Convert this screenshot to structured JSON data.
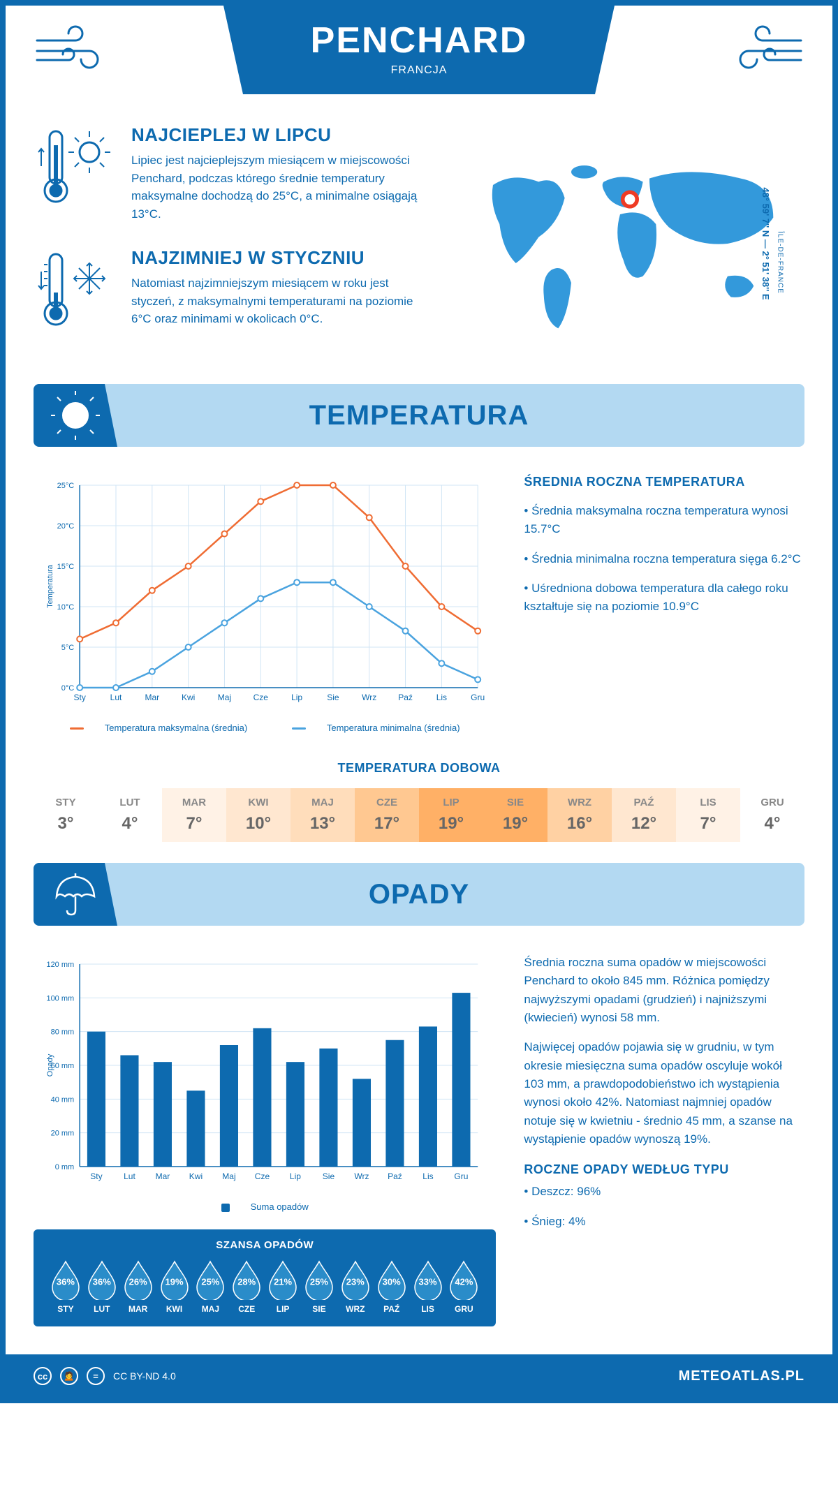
{
  "header": {
    "title": "PENCHARD",
    "subtitle": "FRANCJA"
  },
  "coords": "48° 59' 7'' N — 2° 51' 38'' E",
  "region": "ÎLE-DE-FRANCE",
  "warmest": {
    "title": "NAJCIEPLEJ W LIPCU",
    "text": "Lipiec jest najcieplejszym miesiącem w miejscowości Penchard, podczas którego średnie temperatury maksymalne dochodzą do 25°C, a minimalne osiągają 13°C."
  },
  "coldest": {
    "title": "NAJZIMNIEJ W STYCZNIU",
    "text": "Natomiast najzimniejszym miesiącem w roku jest styczeń, z maksymalnymi temperaturami na poziomie 6°C oraz minimami w okolicach 0°C."
  },
  "temp": {
    "section_title": "TEMPERATURA",
    "side_title": "ŚREDNIA ROCZNA TEMPERATURA",
    "side_bullets": [
      "• Średnia maksymalna roczna temperatura wynosi 15.7°C",
      "• Średnia minimalna roczna temperatura sięga 6.2°C",
      "• Uśredniona dobowa temperatura dla całego roku kształtuje się na poziomie 10.9°C"
    ],
    "chart": {
      "months": [
        "Sty",
        "Lut",
        "Mar",
        "Kwi",
        "Maj",
        "Cze",
        "Lip",
        "Sie",
        "Wrz",
        "Paź",
        "Lis",
        "Gru"
      ],
      "max": [
        6,
        8,
        12,
        15,
        19,
        23,
        25,
        25,
        21,
        15,
        10,
        7
      ],
      "min": [
        0,
        0,
        2,
        5,
        8,
        11,
        13,
        13,
        10,
        7,
        3,
        1
      ],
      "max_color": "#ef6c33",
      "min_color": "#4aa3df",
      "ylim": [
        0,
        25
      ],
      "ytick_step": 5,
      "ylabel": "Temperatura",
      "grid_color": "#d0e5f5",
      "legend_max": "Temperatura maksymalna (średnia)",
      "legend_min": "Temperatura minimalna (średnia)"
    },
    "dobowa": {
      "title": "TEMPERATURA DOBOWA",
      "months": [
        "STY",
        "LUT",
        "MAR",
        "KWI",
        "MAJ",
        "CZE",
        "LIP",
        "SIE",
        "WRZ",
        "PAŹ",
        "LIS",
        "GRU"
      ],
      "values": [
        "3°",
        "4°",
        "7°",
        "10°",
        "13°",
        "17°",
        "19°",
        "19°",
        "16°",
        "12°",
        "7°",
        "4°"
      ],
      "colors": [
        "#ffffff",
        "#ffffff",
        "#fff2e6",
        "#ffe7d0",
        "#ffddbb",
        "#ffc891",
        "#ffb066",
        "#ffb066",
        "#ffd1a3",
        "#ffe7d0",
        "#fff2e6",
        "#ffffff"
      ]
    }
  },
  "precip": {
    "section_title": "OPADY",
    "text1": "Średnia roczna suma opadów w miejscowości Penchard to około 845 mm. Różnica pomiędzy najwyższymi opadami (grudzień) i najniższymi (kwiecień) wynosi 58 mm.",
    "text2": "Najwięcej opadów pojawia się w grudniu, w tym okresie miesięczna suma opadów oscyluje wokół 103 mm, a prawdopodobieństwo ich wystąpienia wynosi około 42%. Natomiast najmniej opadów notuje się w kwietniu - średnio 45 mm, a szanse na wystąpienie opadów wynoszą 19%.",
    "chart": {
      "months": [
        "Sty",
        "Lut",
        "Mar",
        "Kwi",
        "Maj",
        "Cze",
        "Lip",
        "Sie",
        "Wrz",
        "Paź",
        "Lis",
        "Gru"
      ],
      "values": [
        80,
        66,
        62,
        45,
        72,
        82,
        62,
        70,
        52,
        75,
        83,
        103
      ],
      "ylim": [
        0,
        120
      ],
      "ytick_step": 20,
      "ylabel": "Opady",
      "bar_color": "#0d6aaf",
      "grid_color": "#d0e5f5",
      "legend": "Suma opadów"
    },
    "chance": {
      "title": "SZANSA OPADÓW",
      "months": [
        "STY",
        "LUT",
        "MAR",
        "KWI",
        "MAJ",
        "CZE",
        "LIP",
        "SIE",
        "WRZ",
        "PAŹ",
        "LIS",
        "GRU"
      ],
      "values": [
        "36%",
        "36%",
        "26%",
        "19%",
        "25%",
        "28%",
        "21%",
        "25%",
        "23%",
        "30%",
        "33%",
        "42%"
      ],
      "drop_fill": "#2a8cc9",
      "drop_stroke": "#ffffff"
    },
    "type": {
      "title": "ROCZNE OPADY WEDŁUG TYPU",
      "rain": "• Deszcz: 96%",
      "snow": "• Śnieg: 4%"
    }
  },
  "footer": {
    "license": "CC BY-ND 4.0",
    "site": "METEOATLAS.PL"
  }
}
